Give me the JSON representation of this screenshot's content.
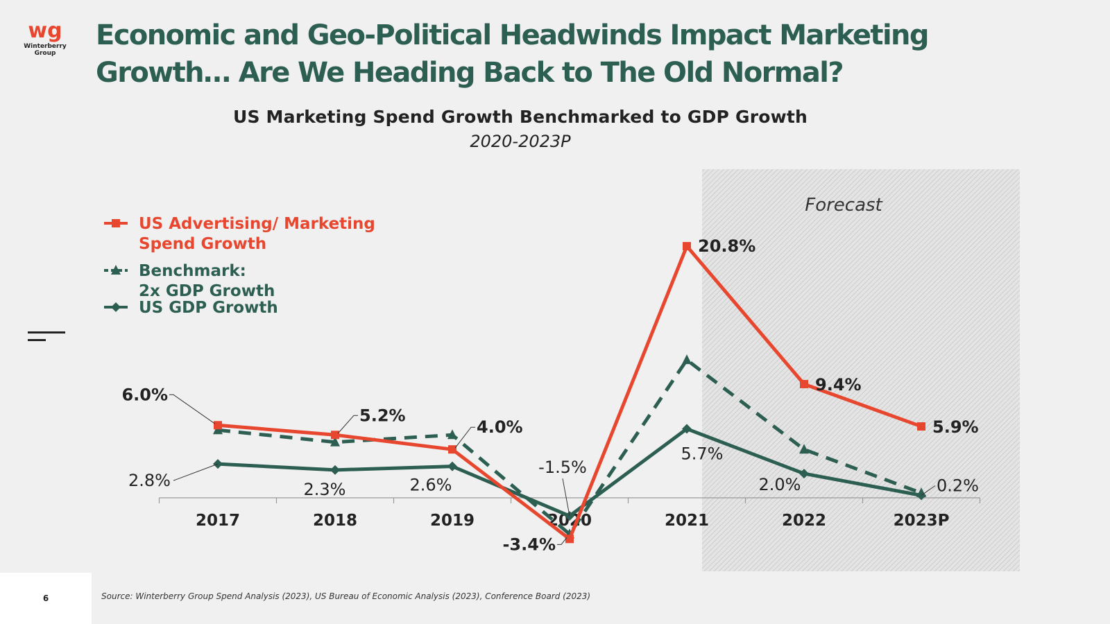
{
  "logo": {
    "mark": "wg",
    "name": "Winterberry Group"
  },
  "page": {
    "title": "Economic and Geo-Political Headwinds Impact Marketing Growth… Are We Heading Back to The Old Normal?",
    "number": "6",
    "source": "Source: Winterberry Group Spend Analysis (2023), US Bureau of Economic Analysis (2023), Conference Board (2023)"
  },
  "colors": {
    "title": "#2d5e52",
    "advertising": "#e8472f",
    "gdp": "#2d5e52",
    "benchmark": "#2d5e52"
  },
  "chart_data": {
    "type": "line",
    "title": "US Marketing Spend Growth Benchmarked to GDP Growth",
    "subtitle": "2020-2023P",
    "categories": [
      "2017",
      "2018",
      "2019",
      "2020",
      "2021",
      "2022",
      "2023P"
    ],
    "forecast_label": "Forecast",
    "forecast_from": "2021",
    "grid": false,
    "legend_position": "top-left",
    "series": [
      {
        "name": "US Advertising/ Marketing Spend Growth",
        "marker": "square",
        "style": "solid",
        "values": [
          6.0,
          5.2,
          4.0,
          -3.4,
          20.8,
          9.4,
          5.9
        ],
        "labels": [
          "6.0%",
          "5.2%",
          "4.0%",
          "-3.4%",
          "20.8%",
          "9.4%",
          "5.9%"
        ]
      },
      {
        "name": "Benchmark: 2x GDP Growth",
        "marker": "triangle",
        "style": "dashed",
        "values": [
          5.6,
          4.6,
          5.2,
          -3.0,
          11.4,
          4.0,
          0.4
        ],
        "labels": [
          "",
          "",
          "",
          "",
          "",
          "",
          ""
        ]
      },
      {
        "name": "US GDP Growth",
        "marker": "diamond",
        "style": "solid",
        "values": [
          2.8,
          2.3,
          2.6,
          -1.5,
          5.7,
          2.0,
          0.2
        ],
        "labels": [
          "2.8%",
          "2.3%",
          "2.6%",
          "-1.5%",
          "5.7%",
          "2.0%",
          "0.2%"
        ]
      }
    ],
    "legend": [
      {
        "line1": "US Advertising/ Marketing",
        "line2": "Spend Growth"
      },
      {
        "line1": "Benchmark:",
        "line2": "2x GDP Growth"
      },
      {
        "line1": "US GDP Growth",
        "line2": ""
      }
    ]
  }
}
